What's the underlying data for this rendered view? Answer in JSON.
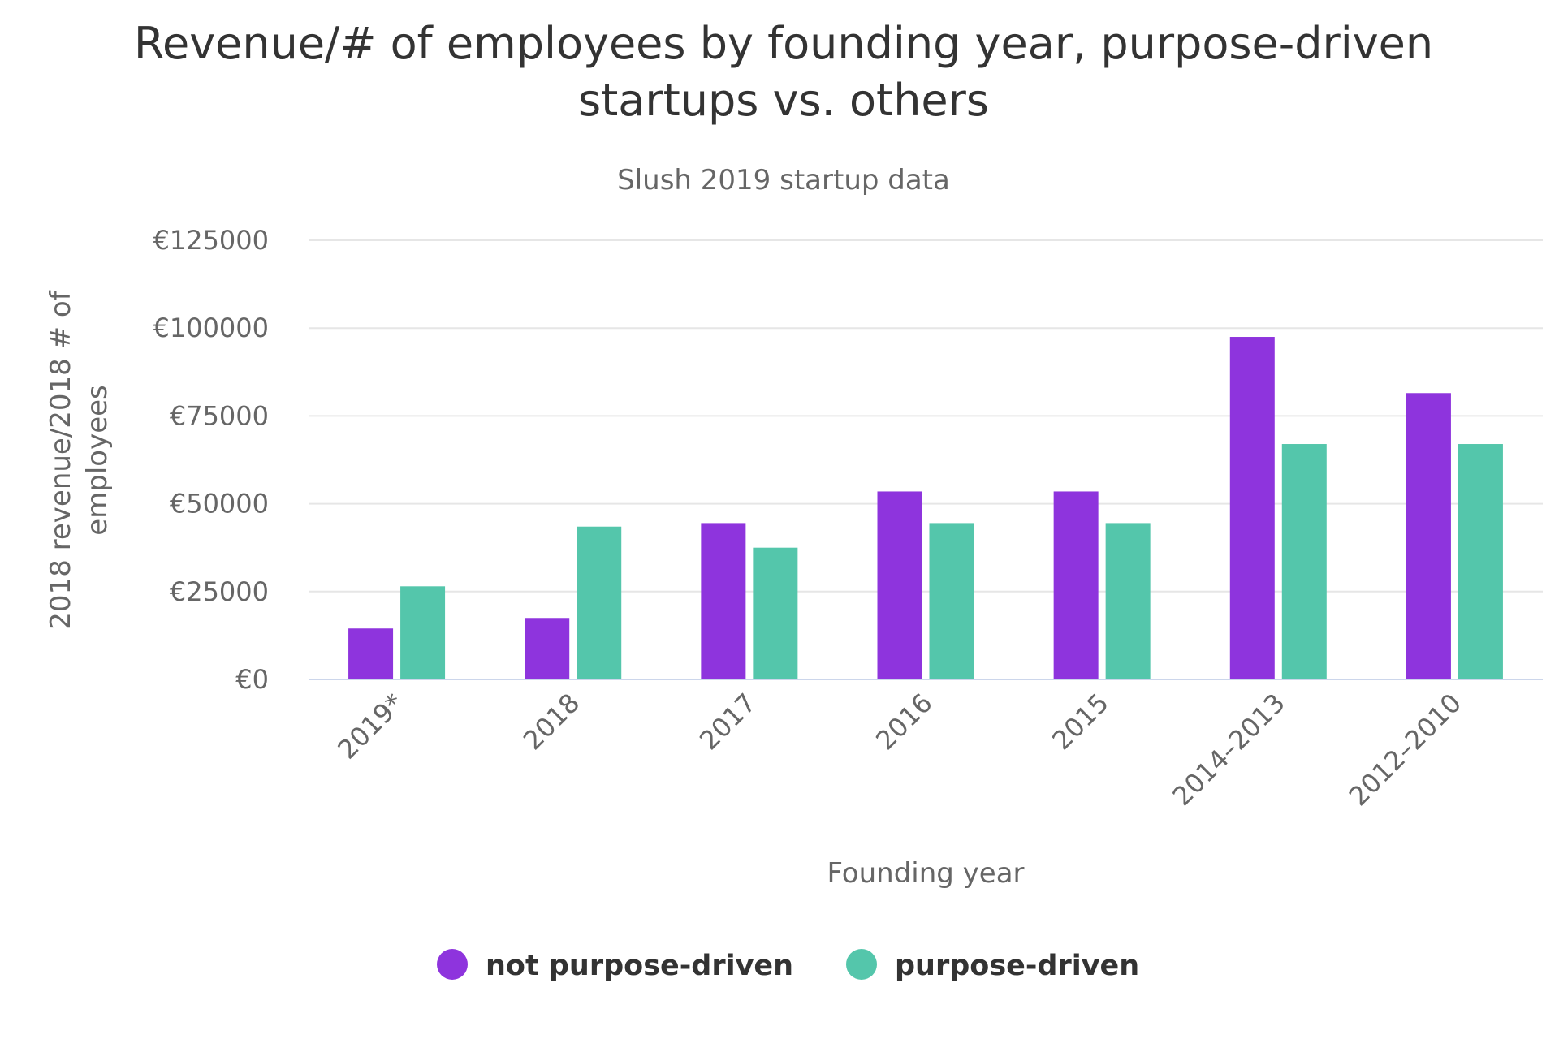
{
  "chart_data": {
    "type": "bar",
    "title_line1": "Revenue/# of employees by founding year, purpose-driven",
    "title_line2": "startups vs. others",
    "subtitle": "Slush 2019 startup data",
    "xlabel": "Founding year",
    "ylabel_line1": "2018 revenue/2018 # of",
    "ylabel_line2": "employees",
    "ylim": [
      0,
      125000
    ],
    "yticks": [
      0,
      25000,
      50000,
      75000,
      100000,
      125000
    ],
    "ytick_labels": [
      "€0",
      "€25000",
      "€50000",
      "€75000",
      "€100000",
      "€125000"
    ],
    "categories": [
      "2019*",
      "2018",
      "2017",
      "2016",
      "2015",
      "2014–2013",
      "2012–2010"
    ],
    "series": [
      {
        "name": "not purpose-driven",
        "color": "#8e34dd",
        "values": [
          14500,
          17500,
          44500,
          53500,
          53500,
          97500,
          81500
        ]
      },
      {
        "name": "purpose-driven",
        "color": "#54c6ab",
        "values": [
          26500,
          43500,
          37500,
          44500,
          44500,
          67000,
          67000
        ]
      }
    ],
    "grid": true,
    "legend_position": "bottom-center"
  }
}
